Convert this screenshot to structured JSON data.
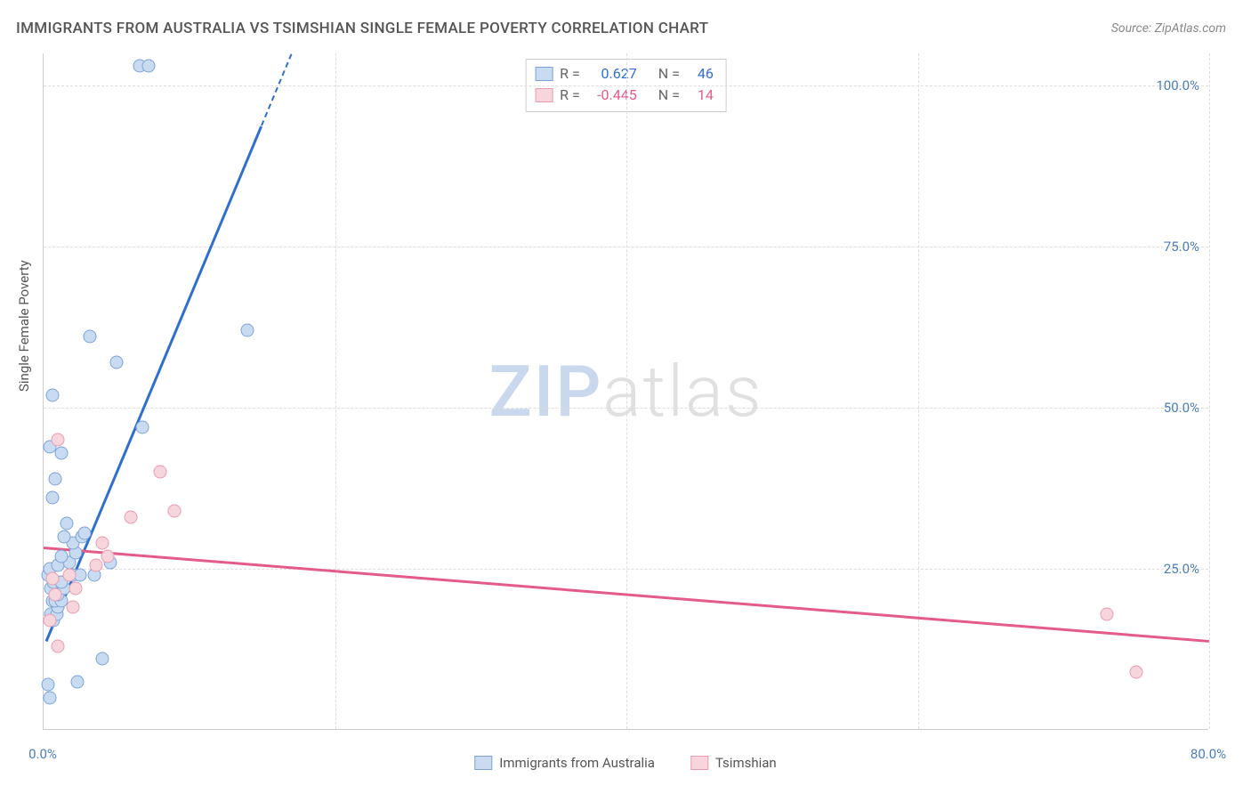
{
  "title": "IMMIGRANTS FROM AUSTRALIA VS TSIMSHIAN SINGLE FEMALE POVERTY CORRELATION CHART",
  "source": "Source: ZipAtlas.com",
  "y_axis_title": "Single Female Poverty",
  "watermark": {
    "part1": "ZIP",
    "part2": "atlas"
  },
  "chart": {
    "type": "scatter",
    "xlim": [
      0,
      80
    ],
    "ylim": [
      0,
      105
    ],
    "x_ticks": [
      0.0,
      20.0,
      40.0,
      60.0,
      80.0
    ],
    "x_tick_labels": [
      "0.0%",
      "",
      "",
      "",
      "80.0%"
    ],
    "y_ticks": [
      25.0,
      50.0,
      75.0,
      100.0
    ],
    "y_tick_labels": [
      "25.0%",
      "50.0%",
      "75.0%",
      "100.0%"
    ],
    "grid_color": "#dddddd",
    "axis_color": "#cccccc",
    "background_color": "#ffffff",
    "tick_label_color": "#4a7ebb",
    "tick_fontsize": 15,
    "title_color": "#555555",
    "title_fontsize": 17,
    "marker_radius": 7.5,
    "series": [
      {
        "name": "Immigrants from Australia",
        "fill": "#c9dbf0",
        "stroke": "#7ba3d6",
        "trend_color": "#2f6fd0",
        "R": "0.627",
        "N": "46",
        "trend": {
          "x1": 0.2,
          "y1": 14,
          "x2": 17,
          "y2": 105
        },
        "points": [
          [
            0.4,
            5
          ],
          [
            0.3,
            7
          ],
          [
            2.3,
            7.5
          ],
          [
            4.0,
            11
          ],
          [
            0.5,
            18
          ],
          [
            0.7,
            17
          ],
          [
            0.9,
            18
          ],
          [
            1.0,
            19
          ],
          [
            0.6,
            20
          ],
          [
            0.8,
            20
          ],
          [
            1.2,
            20
          ],
          [
            1.0,
            21
          ],
          [
            1.4,
            22
          ],
          [
            0.5,
            22
          ],
          [
            0.7,
            23
          ],
          [
            1.2,
            23
          ],
          [
            0.3,
            24
          ],
          [
            2.0,
            24
          ],
          [
            2.5,
            24
          ],
          [
            3.5,
            24
          ],
          [
            0.4,
            25
          ],
          [
            1.0,
            25.5
          ],
          [
            1.8,
            26
          ],
          [
            4.6,
            26
          ],
          [
            1.2,
            27
          ],
          [
            2.2,
            27.5
          ],
          [
            2.0,
            29
          ],
          [
            1.4,
            30
          ],
          [
            2.6,
            30
          ],
          [
            2.8,
            30.5
          ],
          [
            1.6,
            32
          ],
          [
            0.6,
            36
          ],
          [
            0.8,
            39
          ],
          [
            1.2,
            43
          ],
          [
            0.4,
            44
          ],
          [
            6.8,
            47
          ],
          [
            0.6,
            52
          ],
          [
            5.0,
            57
          ],
          [
            3.2,
            61
          ],
          [
            14.0,
            62
          ],
          [
            6.6,
            103
          ],
          [
            7.2,
            103
          ]
        ]
      },
      {
        "name": "Tsimshian",
        "fill": "#f7d5dd",
        "stroke": "#e89bb0",
        "trend_color": "#e45a88",
        "R": "-0.445",
        "N": "14",
        "trend": {
          "x1": 0,
          "y1": 28.5,
          "x2": 80,
          "y2": 14
        },
        "points": [
          [
            1.0,
            13
          ],
          [
            0.4,
            17
          ],
          [
            2.0,
            19
          ],
          [
            0.8,
            21
          ],
          [
            2.2,
            22
          ],
          [
            0.6,
            23.5
          ],
          [
            1.8,
            24
          ],
          [
            3.6,
            25.5
          ],
          [
            4.4,
            27
          ],
          [
            4.0,
            29
          ],
          [
            6.0,
            33
          ],
          [
            9.0,
            34
          ],
          [
            8.0,
            40
          ],
          [
            1.0,
            45
          ],
          [
            73.0,
            18
          ],
          [
            75.0,
            9
          ]
        ]
      }
    ]
  },
  "stats_legend": {
    "rows": [
      {
        "swatch_fill": "#c9dbf0",
        "swatch_stroke": "#7ba3d6",
        "r_label": "R =",
        "r_value": "0.627",
        "r_color": "#2f6fd0",
        "n_label": "N =",
        "n_value": "46",
        "n_color": "#2f6fd0"
      },
      {
        "swatch_fill": "#f7d5dd",
        "swatch_stroke": "#e89bb0",
        "r_label": "R =",
        "r_value": "-0.445",
        "r_color": "#e45a88",
        "n_label": "N =",
        "n_value": "14",
        "n_color": "#e45a88"
      }
    ]
  },
  "bottom_legend": {
    "items": [
      {
        "swatch_fill": "#c9dbf0",
        "swatch_stroke": "#7ba3d6",
        "label": "Immigrants from Australia"
      },
      {
        "swatch_fill": "#f7d5dd",
        "swatch_stroke": "#e89bb0",
        "label": "Tsimshian"
      }
    ]
  }
}
